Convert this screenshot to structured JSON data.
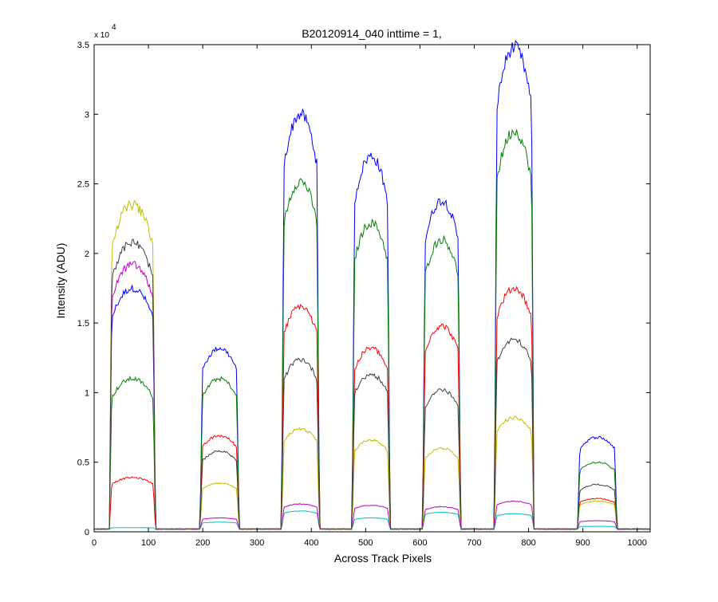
{
  "chart_data": {
    "type": "line",
    "title": "B20120914_040 inttime = 1,",
    "xlabel": "Across Track Pixels",
    "ylabel": "Intensity (ADU)",
    "xlim": [
      0,
      1024
    ],
    "ylim": [
      0,
      35000
    ],
    "y_multiplier_base": "x 10",
    "y_multiplier_exp": "4",
    "xticks": [
      0,
      100,
      200,
      300,
      400,
      500,
      600,
      700,
      800,
      900,
      1000
    ],
    "yticks": [
      0,
      5000,
      10000,
      15000,
      20000,
      25000,
      30000,
      35000
    ],
    "ytick_labels": [
      "0",
      "0.5",
      "1",
      "1.5",
      "2",
      "2.5",
      "3",
      "3.5"
    ],
    "grid": false,
    "legend": "none",
    "baseline": 200,
    "peaks": [
      {
        "x_start": 33,
        "x_end": 108,
        "levels": [
          {
            "color": "#0000ff",
            "value": 17500
          },
          {
            "color": "#008000",
            "value": 11000
          },
          {
            "color": "#ff0000",
            "value": 3900
          },
          {
            "color": "#00bfbf",
            "value": 300
          },
          {
            "color": "#bf00bf",
            "value": 19200
          },
          {
            "color": "#bfbf00",
            "value": 23500
          },
          {
            "color": "#404040",
            "value": 20800
          }
        ]
      },
      {
        "x_start": 200,
        "x_end": 262,
        "levels": [
          {
            "color": "#0000ff",
            "value": 13200
          },
          {
            "color": "#008000",
            "value": 11000
          },
          {
            "color": "#ff0000",
            "value": 6900
          },
          {
            "color": "#00bfbf",
            "value": 700
          },
          {
            "color": "#bf00bf",
            "value": 1000
          },
          {
            "color": "#bfbf00",
            "value": 3500
          },
          {
            "color": "#404040",
            "value": 5800
          }
        ]
      },
      {
        "x_start": 350,
        "x_end": 410,
        "levels": [
          {
            "color": "#0000ff",
            "value": 30000
          },
          {
            "color": "#008000",
            "value": 25200
          },
          {
            "color": "#ff0000",
            "value": 16200
          },
          {
            "color": "#00bfbf",
            "value": 1500
          },
          {
            "color": "#bf00bf",
            "value": 2000
          },
          {
            "color": "#bfbf00",
            "value": 7400
          },
          {
            "color": "#404040",
            "value": 12400
          }
        ]
      },
      {
        "x_start": 480,
        "x_end": 540,
        "levels": [
          {
            "color": "#0000ff",
            "value": 27000
          },
          {
            "color": "#008000",
            "value": 22200
          },
          {
            "color": "#ff0000",
            "value": 13200
          },
          {
            "color": "#00bfbf",
            "value": 1000
          },
          {
            "color": "#bf00bf",
            "value": 1900
          },
          {
            "color": "#bfbf00",
            "value": 6600
          },
          {
            "color": "#404040",
            "value": 11300
          }
        ]
      },
      {
        "x_start": 610,
        "x_end": 670,
        "levels": [
          {
            "color": "#0000ff",
            "value": 23800
          },
          {
            "color": "#008000",
            "value": 21000
          },
          {
            "color": "#ff0000",
            "value": 14800
          },
          {
            "color": "#00bfbf",
            "value": 1400
          },
          {
            "color": "#bf00bf",
            "value": 1800
          },
          {
            "color": "#bfbf00",
            "value": 6000
          },
          {
            "color": "#404040",
            "value": 10200
          }
        ]
      },
      {
        "x_start": 742,
        "x_end": 805,
        "levels": [
          {
            "color": "#0000ff",
            "value": 34800
          },
          {
            "color": "#008000",
            "value": 28800
          },
          {
            "color": "#ff0000",
            "value": 17500
          },
          {
            "color": "#00bfbf",
            "value": 1300
          },
          {
            "color": "#bf00bf",
            "value": 2200
          },
          {
            "color": "#bfbf00",
            "value": 8200
          },
          {
            "color": "#404040",
            "value": 13800
          }
        ]
      },
      {
        "x_start": 895,
        "x_end": 958,
        "levels": [
          {
            "color": "#0000ff",
            "value": 6800
          },
          {
            "color": "#008000",
            "value": 5000
          },
          {
            "color": "#ff0000",
            "value": 2400
          },
          {
            "color": "#00bfbf",
            "value": 400
          },
          {
            "color": "#bf00bf",
            "value": 800
          },
          {
            "color": "#bfbf00",
            "value": 2200
          },
          {
            "color": "#404040",
            "value": 3400
          }
        ]
      }
    ],
    "series": [
      {
        "color": "#0000ff"
      },
      {
        "color": "#008000"
      },
      {
        "color": "#ff0000"
      },
      {
        "color": "#00bfbf"
      },
      {
        "color": "#bf00bf"
      },
      {
        "color": "#bfbf00"
      },
      {
        "color": "#404040"
      }
    ]
  }
}
